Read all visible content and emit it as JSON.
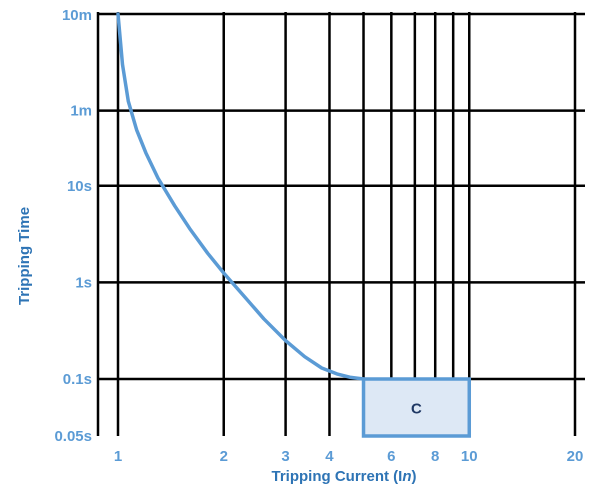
{
  "chart_data": {
    "type": "line",
    "xlabel": "Tripping Current (In)",
    "xlabel_parts": [
      "Tripping Current (I",
      "n",
      ")"
    ],
    "ylabel": "Tripping Time",
    "x_scale": "log",
    "y_scale": "log",
    "xlim": [
      0.9,
      20
    ],
    "ylim": [
      0.05,
      600
    ],
    "grid": true,
    "x_ticks": [
      {
        "value": 1,
        "label": "1"
      },
      {
        "value": 2,
        "label": "2"
      },
      {
        "value": 3,
        "label": "3"
      },
      {
        "value": 4,
        "label": "4"
      },
      {
        "value": 6,
        "label": "6"
      },
      {
        "value": 8,
        "label": "8"
      },
      {
        "value": 10,
        "label": "10"
      },
      {
        "value": 20,
        "label": "20"
      }
    ],
    "x_gridlines": [
      1,
      2,
      3,
      4,
      5,
      6,
      7,
      8,
      9,
      10,
      20
    ],
    "y_ticks": [
      {
        "value": 600,
        "label": "10m"
      },
      {
        "value": 60,
        "label": "1m"
      },
      {
        "value": 10,
        "label": "10s"
      },
      {
        "value": 1,
        "label": "1s"
      },
      {
        "value": 0.1,
        "label": "0.1s"
      },
      {
        "value": 0.05,
        "label": "0.05s"
      }
    ],
    "series": [
      {
        "type": "line",
        "x": [
          1.0,
          1.03,
          1.07,
          1.13,
          1.2,
          1.3,
          1.45,
          1.6,
          1.8,
          2.0,
          2.3,
          2.6,
          3.0,
          3.4,
          3.8,
          4.2,
          4.6,
          5.0
        ],
        "y": [
          600,
          180,
          75,
          38,
          22,
          12,
          6.2,
          3.6,
          2.0,
          1.25,
          0.7,
          0.42,
          0.25,
          0.17,
          0.13,
          0.113,
          0.104,
          0.1
        ]
      }
    ],
    "regions": [
      {
        "label": "C",
        "x_range": [
          5,
          10
        ],
        "y_range": [
          0.05,
          0.1
        ]
      }
    ],
    "colors": {
      "curve": "#5b9bd5",
      "region_fill": "#dde8f5",
      "region_stroke": "#5b9bd5",
      "tick_labels": "#5b9bd5",
      "axis_titles": "#2e74b5",
      "region_label": "#1f3864",
      "grid": "#000000"
    }
  }
}
